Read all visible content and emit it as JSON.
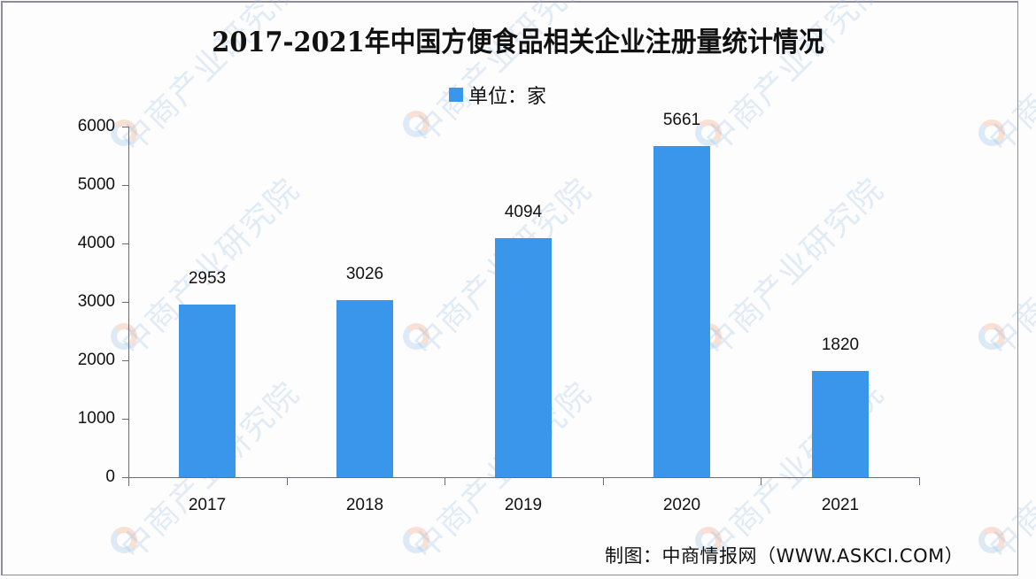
{
  "title": "2017-2021年中国方便食品相关企业注册量统计情况",
  "legend": {
    "label": "单位：家",
    "color": "#3a96ea"
  },
  "source": "制图：中商情报网（WWW.ASKCI.COM）",
  "watermark": "中商产业研究院",
  "y_axis": {
    "ticks": [
      "0",
      "1000",
      "2000",
      "3000",
      "4000",
      "5000",
      "6000"
    ]
  },
  "x_axis": {
    "labels": [
      "2017",
      "2018",
      "2019",
      "2020",
      "2021"
    ]
  },
  "bars": [
    {
      "year": "2017",
      "value": "2953"
    },
    {
      "year": "2018",
      "value": "3026"
    },
    {
      "year": "2019",
      "value": "4094"
    },
    {
      "year": "2020",
      "value": "5661"
    },
    {
      "year": "2021",
      "value": "1820"
    }
  ],
  "chart_data": {
    "type": "bar",
    "title": "2017-2021年中国方便食品相关企业注册量统计情况",
    "categories": [
      "2017",
      "2018",
      "2019",
      "2020",
      "2021"
    ],
    "series": [
      {
        "name": "单位：家",
        "values": [
          2953,
          3026,
          4094,
          5661,
          1820
        ],
        "color": "#3a96ea"
      }
    ],
    "xlabel": "",
    "ylabel": "",
    "ylim": [
      0,
      6000
    ],
    "yticks": [
      0,
      1000,
      2000,
      3000,
      4000,
      5000,
      6000
    ],
    "grid": false,
    "legend_position": "top",
    "data_labels": true,
    "source": "制图：中商情报网（WWW.ASKCI.COM）"
  }
}
